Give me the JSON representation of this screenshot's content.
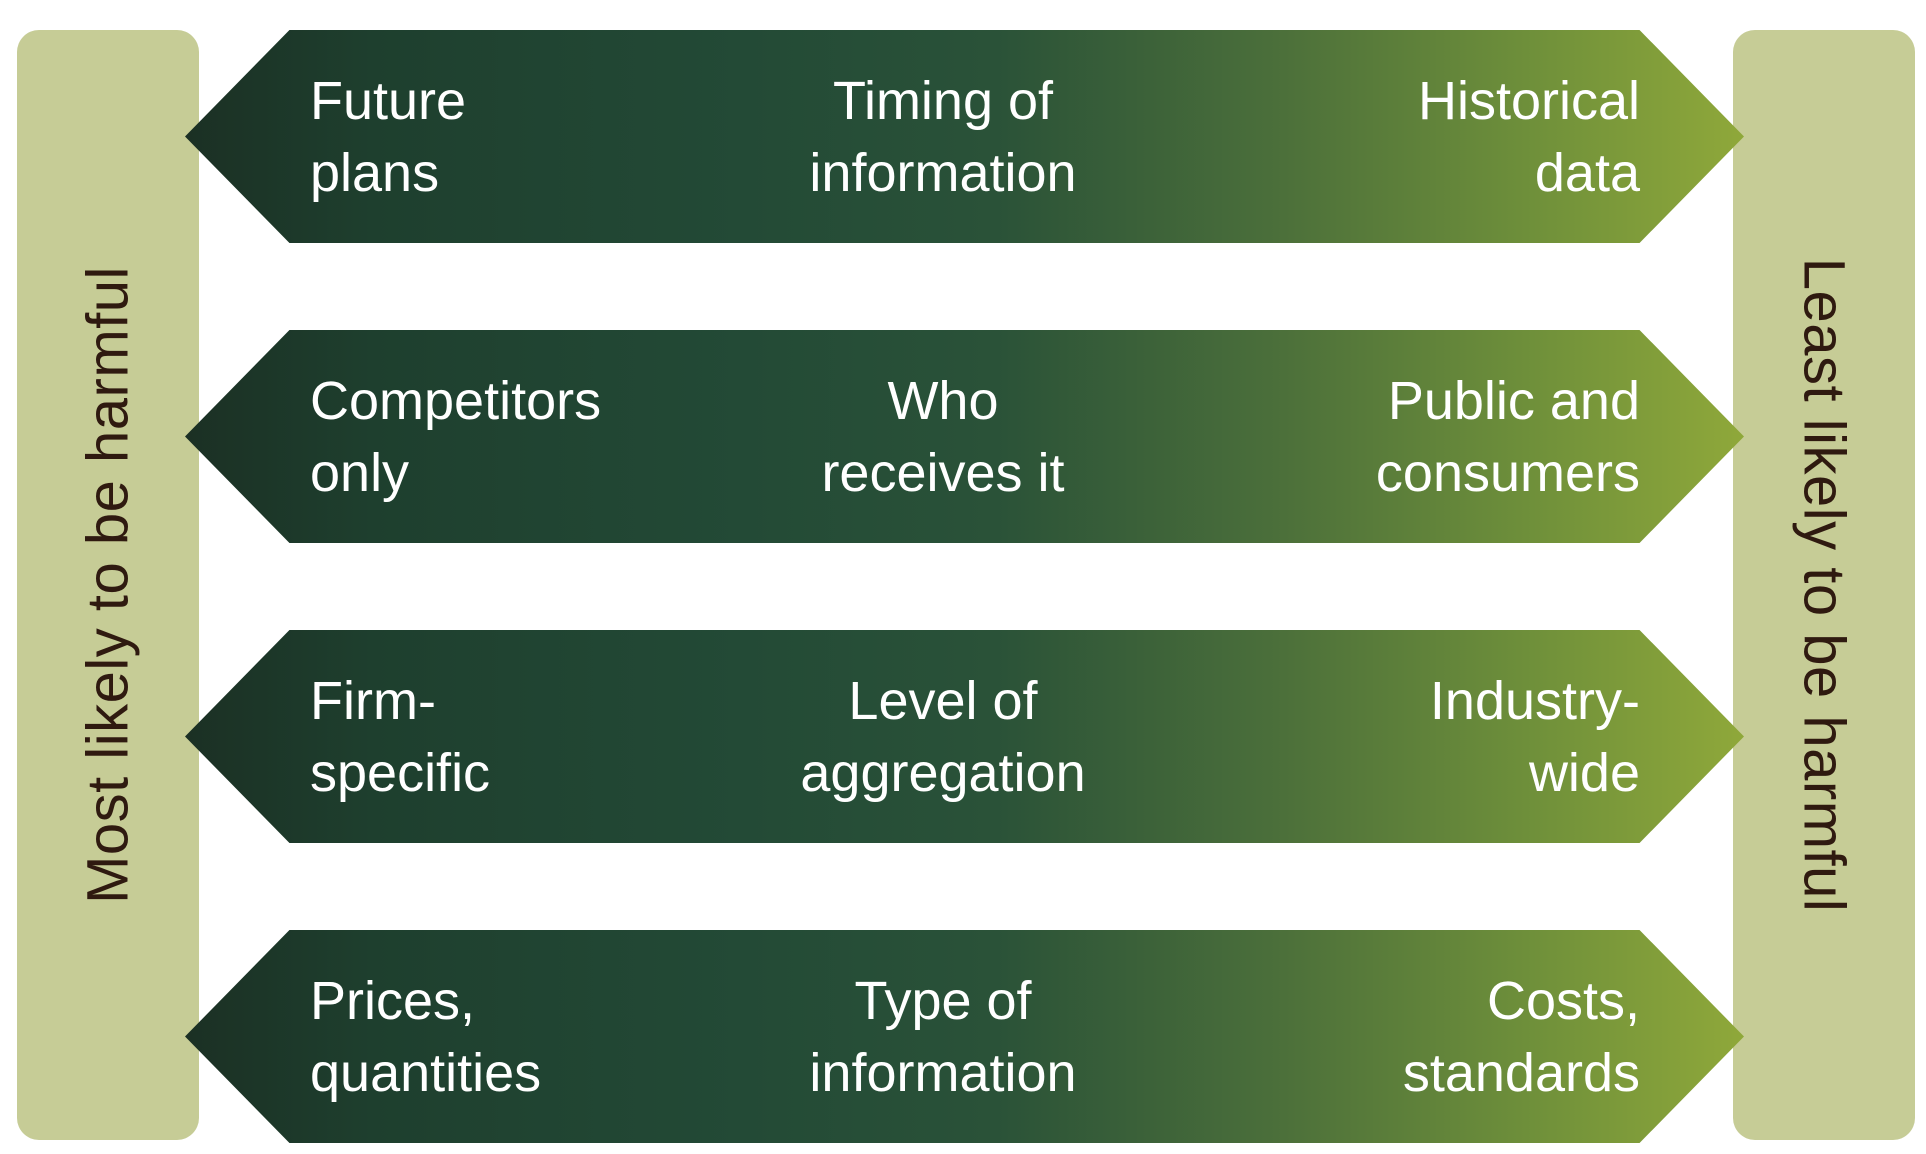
{
  "side_left": {
    "label": "Most likely to be harmful"
  },
  "side_right": {
    "label": "Least likely to be harmful"
  },
  "rows": [
    {
      "left": "Future\nplans",
      "center": "Timing of\ninformation",
      "right": "Historical\ndata"
    },
    {
      "left": "Competitors\nonly",
      "center": "Who\nreceives it",
      "right": "Public and\nconsumers"
    },
    {
      "left": "Firm-\nspecific",
      "center": "Level of\naggregation",
      "right": "Industry-\nwide"
    },
    {
      "left": "Prices,\nquantities",
      "center": "Type of\ninformation",
      "right": "Costs,\nstandards"
    }
  ],
  "colors": {
    "side_bar": "#c6cc96",
    "side_text": "#2f1a10",
    "arrow_dark": "#1b3024",
    "arrow_light": "#8fa83a",
    "arrow_text": "#ffffff"
  }
}
